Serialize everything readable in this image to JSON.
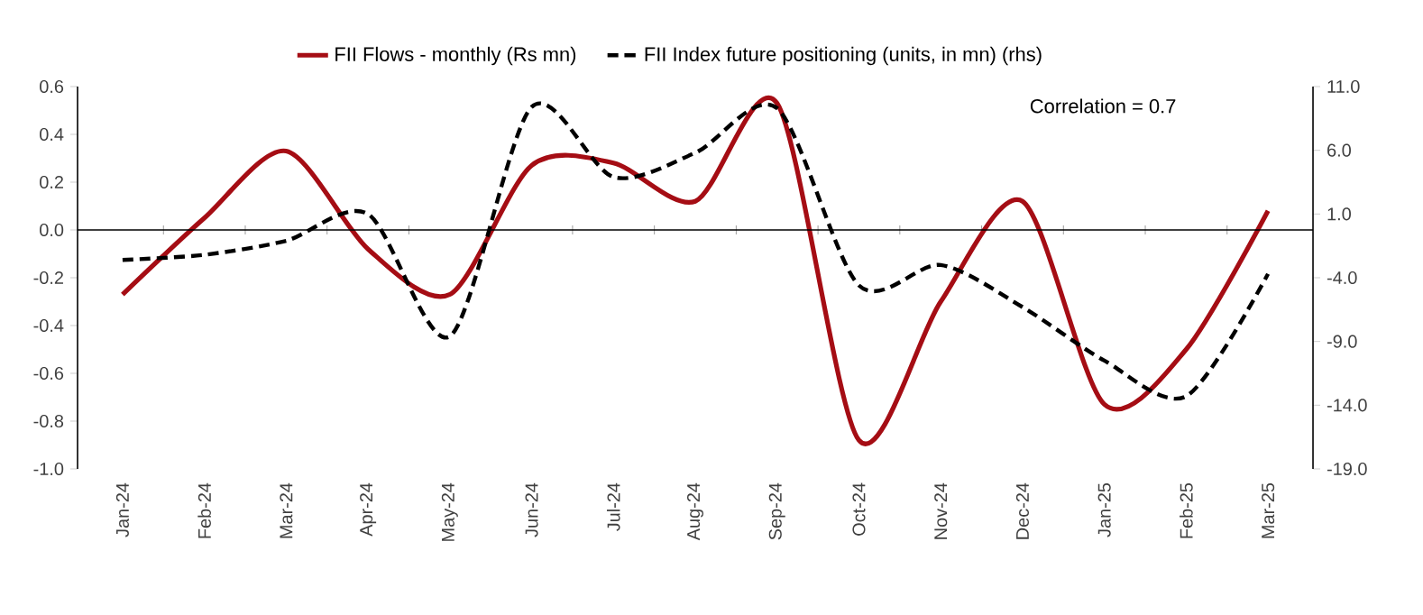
{
  "chart_data": {
    "type": "line",
    "categories": [
      "Jan-24",
      "Feb-24",
      "Mar-24",
      "Apr-24",
      "May-24",
      "Jun-24",
      "Jul-24",
      "Aug-24",
      "Sep-24",
      "Oct-24",
      "Nov-24",
      "Dec-24",
      "Jan-25",
      "Feb-25",
      "Mar-25"
    ],
    "series": [
      {
        "name": "FII Flows - monthly (Rs mn)",
        "color": "#a50d14",
        "line_style": "solid",
        "values": [
          -0.27,
          0.05,
          0.33,
          -0.08,
          -0.27,
          0.27,
          0.28,
          0.12,
          0.53,
          -0.88,
          -0.3,
          0.12,
          -0.73,
          -0.5,
          0.08
        ]
      },
      {
        "name": "FII Index future positioning (units, in mn) (rhs)",
        "color": "#000000",
        "line_style": "dashed",
        "axis": "y2",
        "values": [
          -2.6,
          -2.2,
          -1.1,
          1.0,
          -8.6,
          9.4,
          3.9,
          5.8,
          9.3,
          -4.6,
          -3.0,
          -6.3,
          -10.5,
          -13.3,
          -3.7
        ]
      }
    ],
    "ylim": [
      -1.0,
      0.6
    ],
    "yticks": [
      {
        "value": -1.0,
        "label": "-1.0"
      },
      -0.8,
      -0.6,
      -0.4,
      -0.2,
      {
        "value": 0,
        "label": "0.0"
      },
      0.2,
      0.4,
      0.6
    ],
    "y2lim": [
      -19,
      11
    ],
    "y2ticks": [
      {
        "value": -19,
        "label": "-19.0"
      },
      {
        "value": -14,
        "label": "-14.0"
      },
      {
        "value": -9,
        "label": "-9.0"
      },
      {
        "value": -4,
        "label": "-4.0"
      },
      {
        "value": 1,
        "label": "1.0"
      },
      {
        "value": 6,
        "label": "6.0"
      },
      {
        "value": 11,
        "label": "11.0"
      }
    ],
    "annotations": [
      "Correlation = 0.7"
    ],
    "ref_lines": [
      {
        "axis": "y",
        "value": 0,
        "color": "#000000"
      }
    ],
    "legend": "top",
    "grid": false,
    "marker": "none"
  }
}
